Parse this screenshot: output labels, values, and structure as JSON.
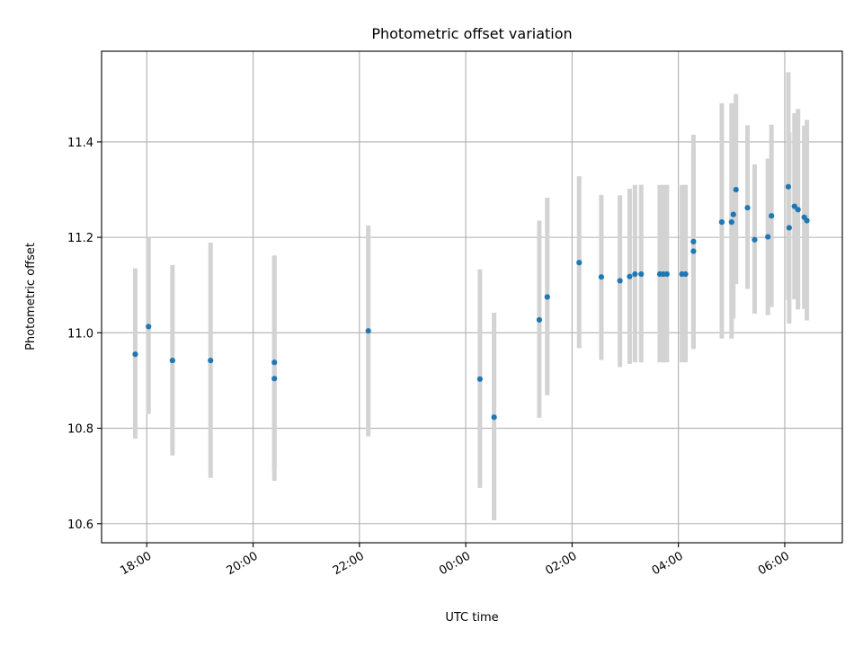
{
  "chart_data": {
    "type": "scatter",
    "title": "Photometric offset variation",
    "xlabel": "UTC time",
    "ylabel": "Photometric offset",
    "x_tick_labels": [
      "18:00",
      "20:00",
      "22:00",
      "00:00",
      "02:00",
      "04:00",
      "06:00"
    ],
    "x_ticks": [
      "17:58",
      "19:58",
      "21:58",
      "23:58",
      "01:58",
      "03:58",
      "05:58"
    ],
    "x_range": [
      "17:07",
      "07:03"
    ],
    "y_ticks": [
      10.6,
      10.8,
      11.0,
      11.2,
      11.4
    ],
    "ylim": [
      10.56,
      11.59
    ],
    "grid": true,
    "colors": {
      "point": "#1f77b4",
      "errorbar": "#d3d3d3",
      "grid": "#b0b0b0"
    },
    "points": [
      {
        "time": "17:45",
        "y": 10.955,
        "ylo": 10.778,
        "yhi": 11.135
      },
      {
        "time": "18:00",
        "y": 11.013,
        "ylo": 10.83,
        "yhi": 11.2
      },
      {
        "time": "18:27",
        "y": 10.942,
        "ylo": 10.743,
        "yhi": 11.142
      },
      {
        "time": "19:10",
        "y": 10.942,
        "ylo": 10.696,
        "yhi": 11.189
      },
      {
        "time": "20:22",
        "y": 10.938,
        "ylo": 10.716,
        "yhi": 11.16
      },
      {
        "time": "20:22",
        "y": 10.904,
        "ylo": 10.69,
        "yhi": 11.162
      },
      {
        "time": "22:08",
        "y": 11.004,
        "ylo": 10.783,
        "yhi": 11.225
      },
      {
        "time": "00:14",
        "y": 10.903,
        "ylo": 10.675,
        "yhi": 11.133
      },
      {
        "time": "00:30",
        "y": 10.823,
        "ylo": 10.607,
        "yhi": 11.042
      },
      {
        "time": "01:21",
        "y": 11.027,
        "ylo": 10.822,
        "yhi": 11.235
      },
      {
        "time": "01:30",
        "y": 11.075,
        "ylo": 10.869,
        "yhi": 11.283
      },
      {
        "time": "02:06",
        "y": 11.147,
        "ylo": 10.968,
        "yhi": 11.328
      },
      {
        "time": "02:31",
        "y": 11.117,
        "ylo": 10.943,
        "yhi": 11.289
      },
      {
        "time": "02:52",
        "y": 11.109,
        "ylo": 10.928,
        "yhi": 11.288
      },
      {
        "time": "03:03",
        "y": 11.118,
        "ylo": 10.935,
        "yhi": 11.302
      },
      {
        "time": "03:09",
        "y": 11.123,
        "ylo": 10.938,
        "yhi": 11.31
      },
      {
        "time": "03:16",
        "y": 11.123,
        "ylo": 10.938,
        "yhi": 11.31
      },
      {
        "time": "03:37",
        "y": 11.123,
        "ylo": 10.938,
        "yhi": 11.31
      },
      {
        "time": "03:41",
        "y": 11.123,
        "ylo": 10.938,
        "yhi": 11.31
      },
      {
        "time": "03:45",
        "y": 11.123,
        "ylo": 10.938,
        "yhi": 11.31
      },
      {
        "time": "04:02",
        "y": 11.123,
        "ylo": 10.938,
        "yhi": 11.31
      },
      {
        "time": "04:06",
        "y": 11.123,
        "ylo": 10.938,
        "yhi": 11.31
      },
      {
        "time": "04:15",
        "y": 11.171,
        "ylo": 10.966,
        "yhi": 11.384
      },
      {
        "time": "04:15",
        "y": 11.191,
        "ylo": 10.97,
        "yhi": 11.415
      },
      {
        "time": "04:47",
        "y": 11.232,
        "ylo": 10.988,
        "yhi": 11.481
      },
      {
        "time": "04:58",
        "y": 11.232,
        "ylo": 10.988,
        "yhi": 11.481
      },
      {
        "time": "05:00",
        "y": 11.248,
        "ylo": 11.03,
        "yhi": 11.469
      },
      {
        "time": "05:03",
        "y": 11.3,
        "ylo": 11.102,
        "yhi": 11.5
      },
      {
        "time": "05:16",
        "y": 11.262,
        "ylo": 11.092,
        "yhi": 11.435
      },
      {
        "time": "05:24",
        "y": 11.195,
        "ylo": 11.04,
        "yhi": 11.353
      },
      {
        "time": "05:39",
        "y": 11.201,
        "ylo": 11.037,
        "yhi": 11.365
      },
      {
        "time": "05:43",
        "y": 11.245,
        "ylo": 11.054,
        "yhi": 11.436
      },
      {
        "time": "06:02",
        "y": 11.306,
        "ylo": 11.068,
        "yhi": 11.546
      },
      {
        "time": "06:03",
        "y": 11.22,
        "ylo": 11.019,
        "yhi": 11.42
      },
      {
        "time": "06:09",
        "y": 11.265,
        "ylo": 11.07,
        "yhi": 11.46
      },
      {
        "time": "06:13",
        "y": 11.258,
        "ylo": 11.049,
        "yhi": 11.469
      },
      {
        "time": "06:20",
        "y": 11.242,
        "ylo": 11.05,
        "yhi": 11.434
      },
      {
        "time": "06:23",
        "y": 11.235,
        "ylo": 11.026,
        "yhi": 11.446
      }
    ]
  }
}
